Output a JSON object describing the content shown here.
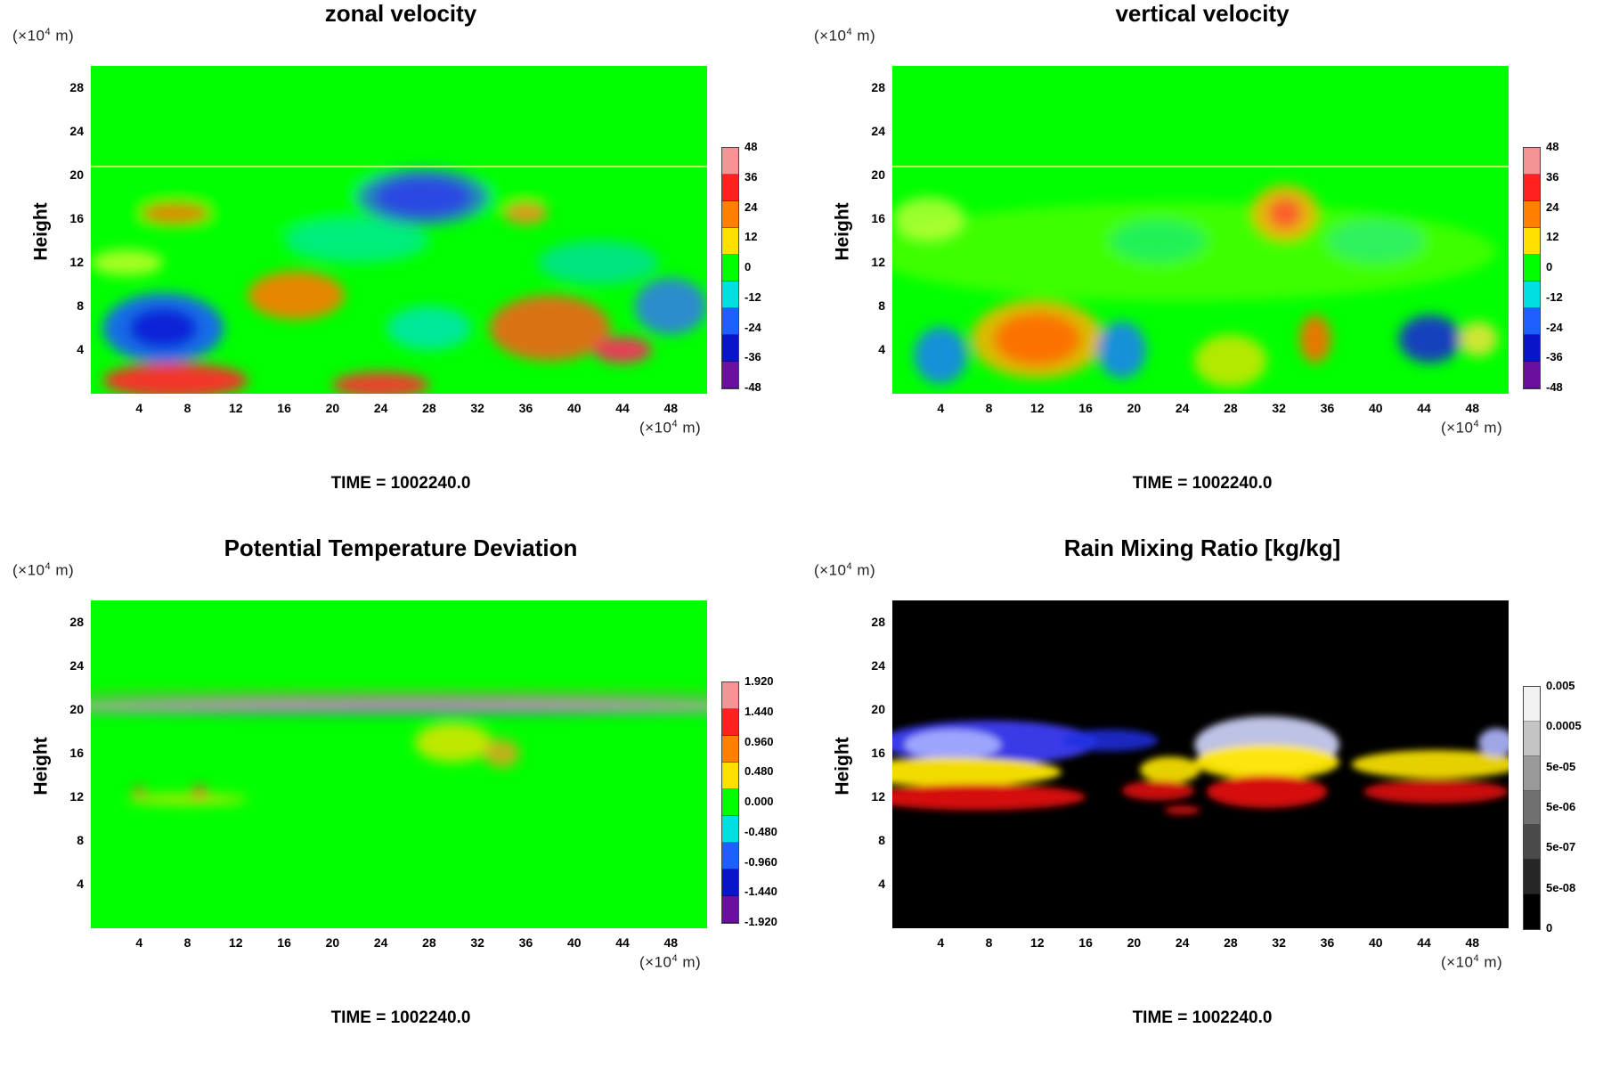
{
  "time_label": "TIME = 1002240.0",
  "unit_label_prefix": "(×10",
  "unit_label_exp": "4",
  "unit_label_suffix": " m)",
  "ylabel": "Height",
  "chart_data": [
    {
      "type": "heatmap",
      "title": "zonal velocity",
      "ylabel": "Height",
      "x_unit": "(×10^4 m)",
      "y_unit": "(×10^4 m)",
      "xticks": [
        4,
        8,
        12,
        16,
        20,
        24,
        28,
        32,
        36,
        40,
        44,
        48
      ],
      "yticks": [
        4,
        8,
        12,
        16,
        20,
        24,
        28
      ],
      "colorbar": [
        "48",
        "36",
        "24",
        "12",
        "0",
        "-12",
        "-24",
        "-36",
        "-48"
      ],
      "time": "TIME = 1002240.0"
    },
    {
      "type": "heatmap",
      "title": "vertical velocity",
      "ylabel": "Height",
      "x_unit": "(×10^4 m)",
      "y_unit": "(×10^4 m)",
      "xticks": [
        4,
        8,
        12,
        16,
        20,
        24,
        28,
        32,
        36,
        40,
        44,
        48
      ],
      "yticks": [
        4,
        8,
        12,
        16,
        20,
        24,
        28
      ],
      "colorbar": [
        "48",
        "36",
        "24",
        "12",
        "0",
        "-12",
        "-24",
        "-36",
        "-48"
      ],
      "time": "TIME = 1002240.0"
    },
    {
      "type": "heatmap",
      "title": "Potential Temperature Deviation",
      "ylabel": "Height",
      "x_unit": "(×10^4 m)",
      "y_unit": "(×10^4 m)",
      "xticks": [
        4,
        8,
        12,
        16,
        20,
        24,
        28,
        32,
        36,
        40,
        44,
        48
      ],
      "yticks": [
        4,
        8,
        12,
        16,
        20,
        24,
        28
      ],
      "colorbar": [
        "1.920",
        "1.440",
        "0.960",
        "0.480",
        "0.000",
        "-0.480",
        "-0.960",
        "-1.440",
        "-1.920"
      ],
      "time": "TIME = 1002240.0"
    },
    {
      "type": "heatmap",
      "title": "Rain Mixing Ratio [kg/kg]",
      "ylabel": "Height",
      "x_unit": "(×10^4 m)",
      "y_unit": "(×10^4 m)",
      "xticks": [
        4,
        8,
        12,
        16,
        20,
        24,
        28,
        32,
        36,
        40,
        44,
        48
      ],
      "yticks": [
        4,
        8,
        12,
        16,
        20,
        24,
        28
      ],
      "colorbar": [
        "0.005",
        "0.0005",
        "5e-05",
        "5e-06",
        "5e-07",
        "5e-08",
        "0"
      ],
      "time": "TIME = 1002240.0"
    }
  ]
}
